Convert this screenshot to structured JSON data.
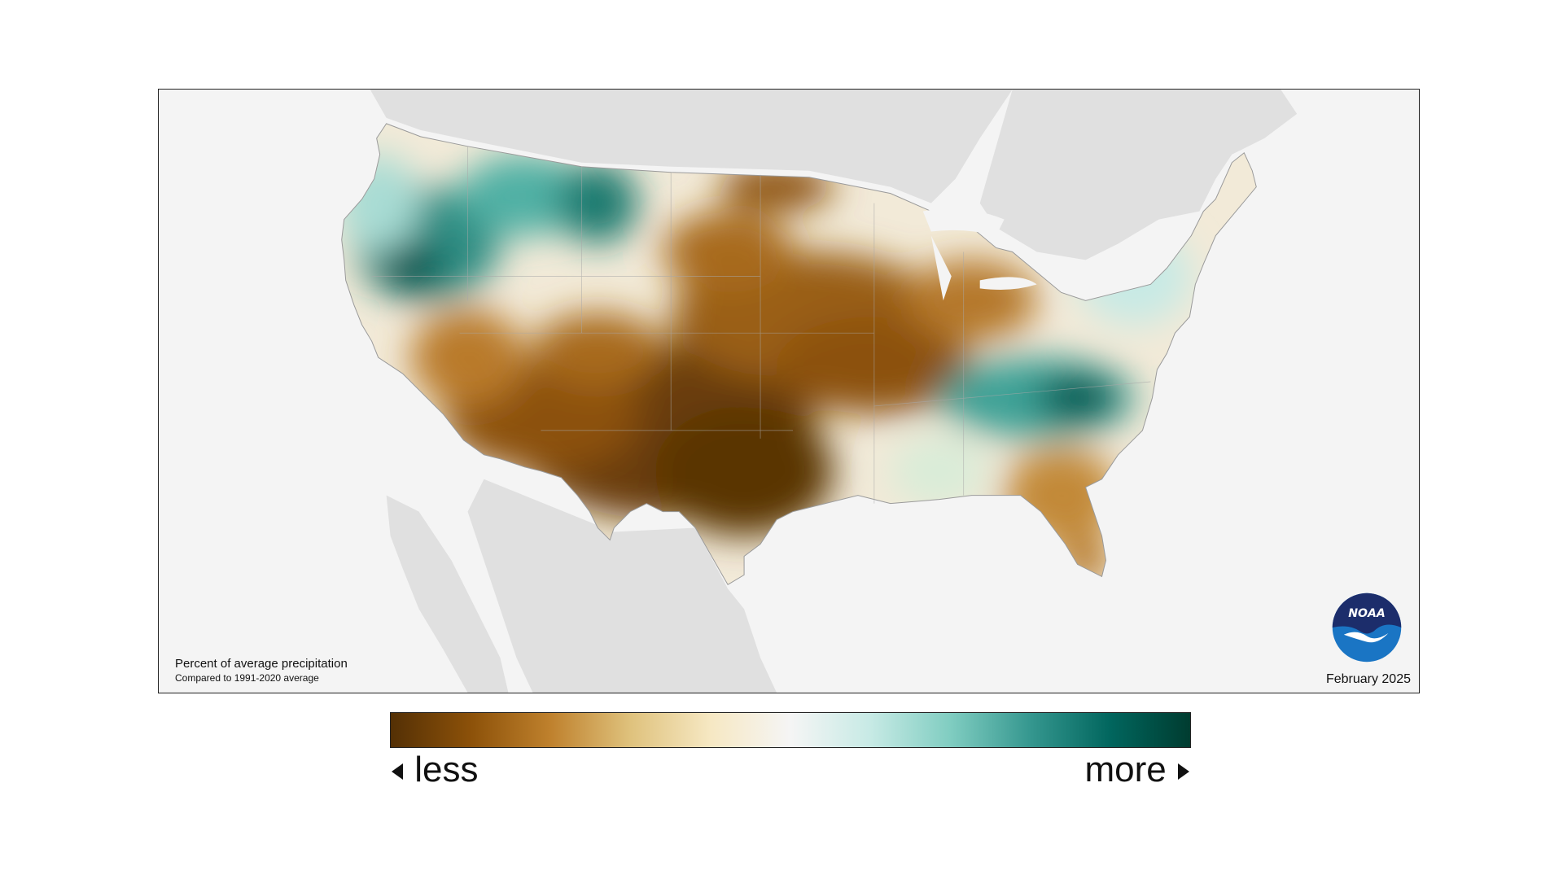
{
  "map": {
    "caption_title": "Percent of average precipitation",
    "caption_subtitle": "Compared to 1991-2020 average",
    "date": "February 2025",
    "logo_text": "NOAA"
  },
  "legend": {
    "low_label": "less",
    "high_label": "more",
    "colors": [
      "#543005",
      "#8c5109",
      "#bf812d",
      "#dfc27d",
      "#f6e8c3",
      "#f5f5f5",
      "#c7eae5",
      "#80cdc1",
      "#35978f",
      "#01665e",
      "#003c30"
    ]
  },
  "colors": {
    "background_land": "#e0e0e0",
    "background_water": "#f4f4f4",
    "dry_dark": "#5a3406",
    "dry_mid": "#a86a1f",
    "dry_light": "#e2c592",
    "wet_light": "#bfe6e0",
    "wet_mid": "#4fb0a4",
    "wet_dark": "#03574f"
  }
}
